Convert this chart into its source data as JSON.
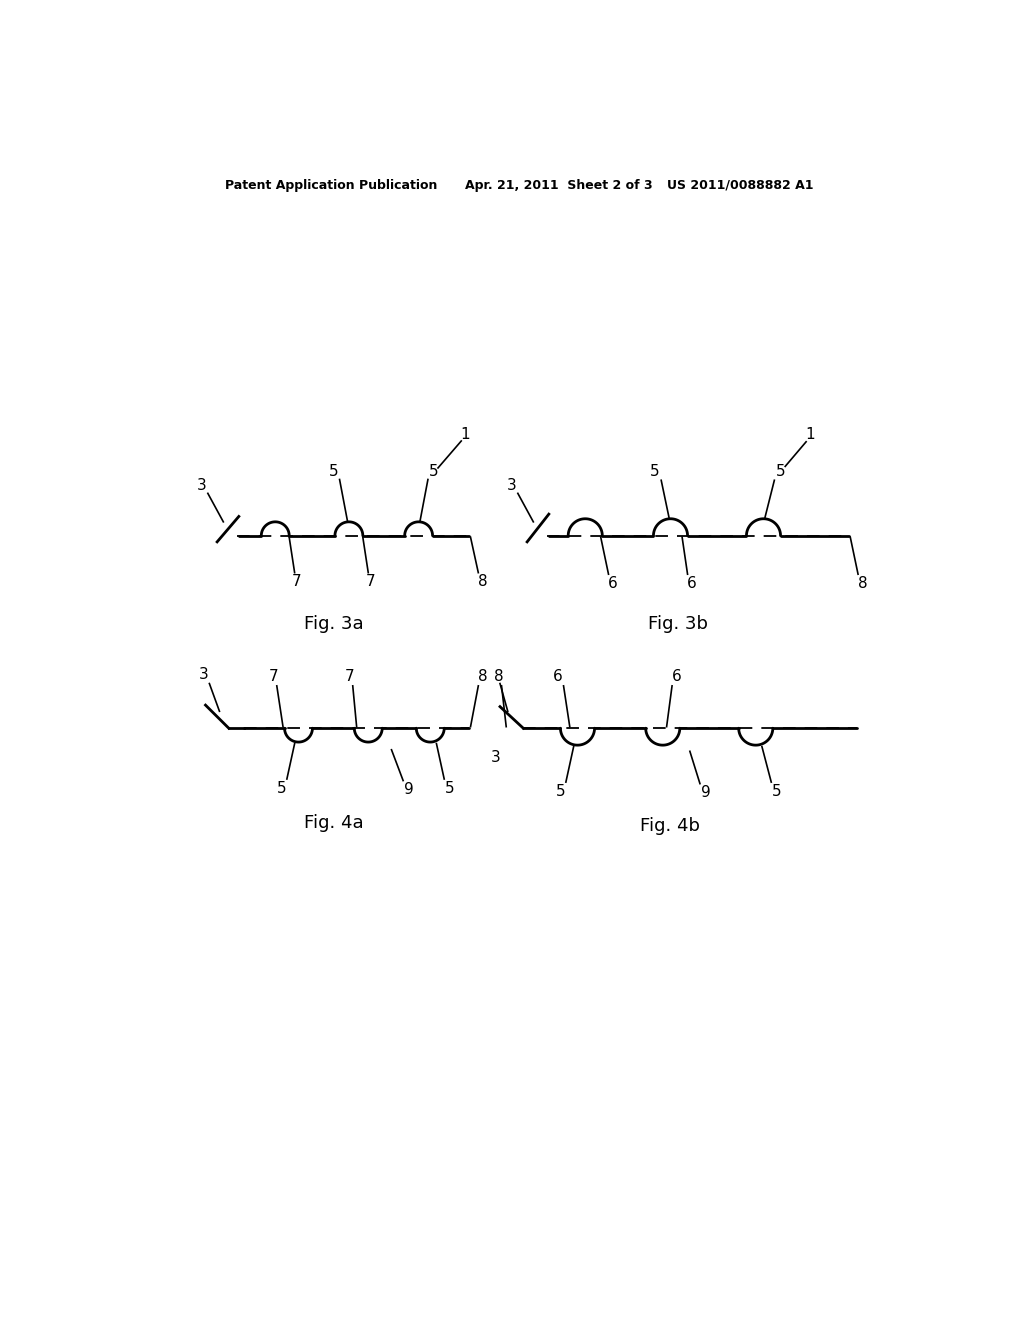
{
  "title_left": "Patent Application Publication",
  "title_mid": "Apr. 21, 2011  Sheet 2 of 3",
  "title_right": "US 2011/0088882 A1",
  "bg_color": "#ffffff",
  "line_color": "#000000",
  "fig3a_label": "Fig. 3a",
  "fig3b_label": "Fig. 3b",
  "fig4a_label": "Fig. 4a",
  "fig4b_label": "Fig. 4b"
}
